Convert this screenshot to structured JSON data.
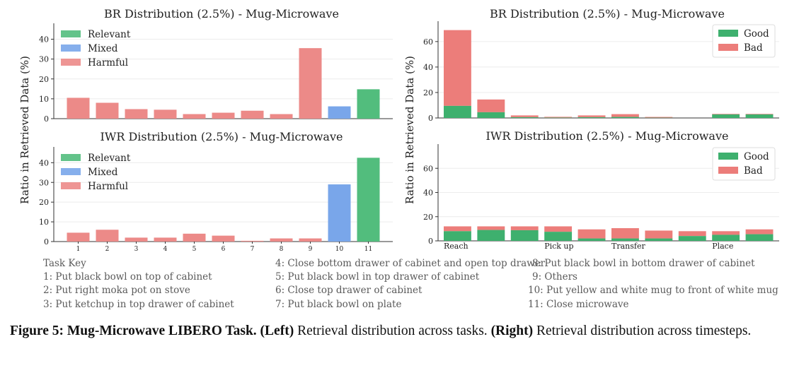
{
  "chart_data": [
    {
      "type": "bar",
      "title": "BR Distribution (2.5%) - Mug-Microwave",
      "ylabel": "Ratio in Retrieved Data (%)",
      "xlabel": "",
      "categories": [
        "1",
        "2",
        "3",
        "4",
        "5",
        "6",
        "7",
        "8",
        "9",
        "10",
        "11"
      ],
      "values": [
        10.5,
        8,
        4.8,
        4.5,
        2.3,
        3,
        4,
        2.3,
        35.5,
        6.2,
        14.8
      ],
      "bar_classes": [
        "Harmful",
        "Harmful",
        "Harmful",
        "Harmful",
        "Harmful",
        "Harmful",
        "Harmful",
        "Harmful",
        "Harmful",
        "Mixed",
        "Relevant"
      ],
      "legend": [
        "Relevant",
        "Mixed",
        "Harmful"
      ],
      "colors": {
        "Relevant": "#52bd7d",
        "Mixed": "#79a6ea",
        "Harmful": "#ec8a88"
      },
      "ylim": [
        0,
        48
      ],
      "yticks": [
        0,
        10,
        20,
        30,
        40
      ],
      "show_xticks": false,
      "legend_position": "top-left"
    },
    {
      "type": "bar",
      "title": "IWR Distribution (2.5%) - Mug-Microwave",
      "ylabel": "Ratio in Retrieved Data (%)",
      "xlabel": "",
      "categories": [
        "1",
        "2",
        "3",
        "4",
        "5",
        "6",
        "7",
        "8",
        "9",
        "10",
        "11"
      ],
      "values": [
        4.5,
        6,
        2,
        2,
        4,
        3,
        0.4,
        1.6,
        1.6,
        29,
        42.5
      ],
      "bar_classes": [
        "Harmful",
        "Harmful",
        "Harmful",
        "Harmful",
        "Harmful",
        "Harmful",
        "Harmful",
        "Harmful",
        "Harmful",
        "Mixed",
        "Relevant"
      ],
      "legend": [
        "Relevant",
        "Mixed",
        "Harmful"
      ],
      "colors": {
        "Relevant": "#52bd7d",
        "Mixed": "#79a6ea",
        "Harmful": "#ec8a88"
      },
      "ylim": [
        0,
        48
      ],
      "yticks": [
        0,
        10,
        20,
        30,
        40
      ],
      "show_xticks": true,
      "legend_position": "top-left"
    },
    {
      "type": "bar",
      "stacked": true,
      "title": "BR Distribution (2.5%) - Mug-Microwave",
      "ylabel": "Ratio in Retrieved Data (%)",
      "xlabel": "",
      "n_bins": 10,
      "series": [
        {
          "name": "Good",
          "values": [
            9.5,
            4.5,
            0.6,
            0.3,
            0.6,
            0.8,
            0.2,
            0,
            2.8,
            2.8
          ]
        },
        {
          "name": "Bad",
          "values": [
            59.5,
            10,
            1.4,
            0.6,
            1.4,
            2.2,
            0.6,
            0,
            0.4,
            0.4
          ]
        }
      ],
      "legend": [
        "Good",
        "Bad"
      ],
      "colors": {
        "Good": "#3eb06e",
        "Bad": "#ec7d7a"
      },
      "ylim": [
        0,
        76
      ],
      "yticks": [
        0,
        20,
        40,
        60
      ],
      "xtick_labels": [],
      "legend_position": "top-right"
    },
    {
      "type": "bar",
      "stacked": true,
      "title": "IWR Distribution (2.5%) - Mug-Microwave",
      "ylabel": "Ratio in Retrieved Data (%)",
      "xlabel": "",
      "n_bins": 10,
      "series": [
        {
          "name": "Good",
          "values": [
            8,
            9,
            8.8,
            7.5,
            2,
            2,
            2,
            4,
            5,
            5.5
          ]
        },
        {
          "name": "Bad",
          "values": [
            4,
            3,
            3.2,
            4.5,
            7.5,
            8.5,
            6.5,
            4,
            3,
            4
          ]
        }
      ],
      "legend": [
        "Good",
        "Bad"
      ],
      "colors": {
        "Good": "#3eb06e",
        "Bad": "#ec7d7a"
      },
      "ylim": [
        0,
        80
      ],
      "yticks": [
        0,
        20,
        40,
        60
      ],
      "xtick_labels": [
        {
          "label": "Reach",
          "bin": 0
        },
        {
          "label": "Pick up",
          "bin": 3
        },
        {
          "label": "Transfer",
          "bin": 5
        },
        {
          "label": "Place",
          "bin": 8
        }
      ],
      "legend_position": "top-right"
    }
  ],
  "task_key": {
    "heading": "Task Key",
    "col1": [
      "1: Put black bowl on top of cabinet",
      "2: Put right moka pot on stove",
      "3: Put ketchup in top drawer of cabinet"
    ],
    "col2": [
      "4: Close bottom drawer of cabinet and open top drawer",
      "5: Put black bowl in top drawer of cabinet",
      "6: Close top drawer of cabinet",
      "7: Put black bowl on plate"
    ],
    "col3": [
      "8: Put black bowl in bottom drawer of cabinet",
      "9: Others",
      "10: Put yellow and white mug to front of white mug",
      "11: Close microwave"
    ]
  },
  "caption": {
    "label": "Figure 5: Mug-Microwave LIBERO Task.",
    "left_tag": "(Left)",
    "left_text": " Retrieval distribution across tasks. ",
    "right_tag": "(Right)",
    "right_text": " Retrieval distribution across timesteps."
  }
}
